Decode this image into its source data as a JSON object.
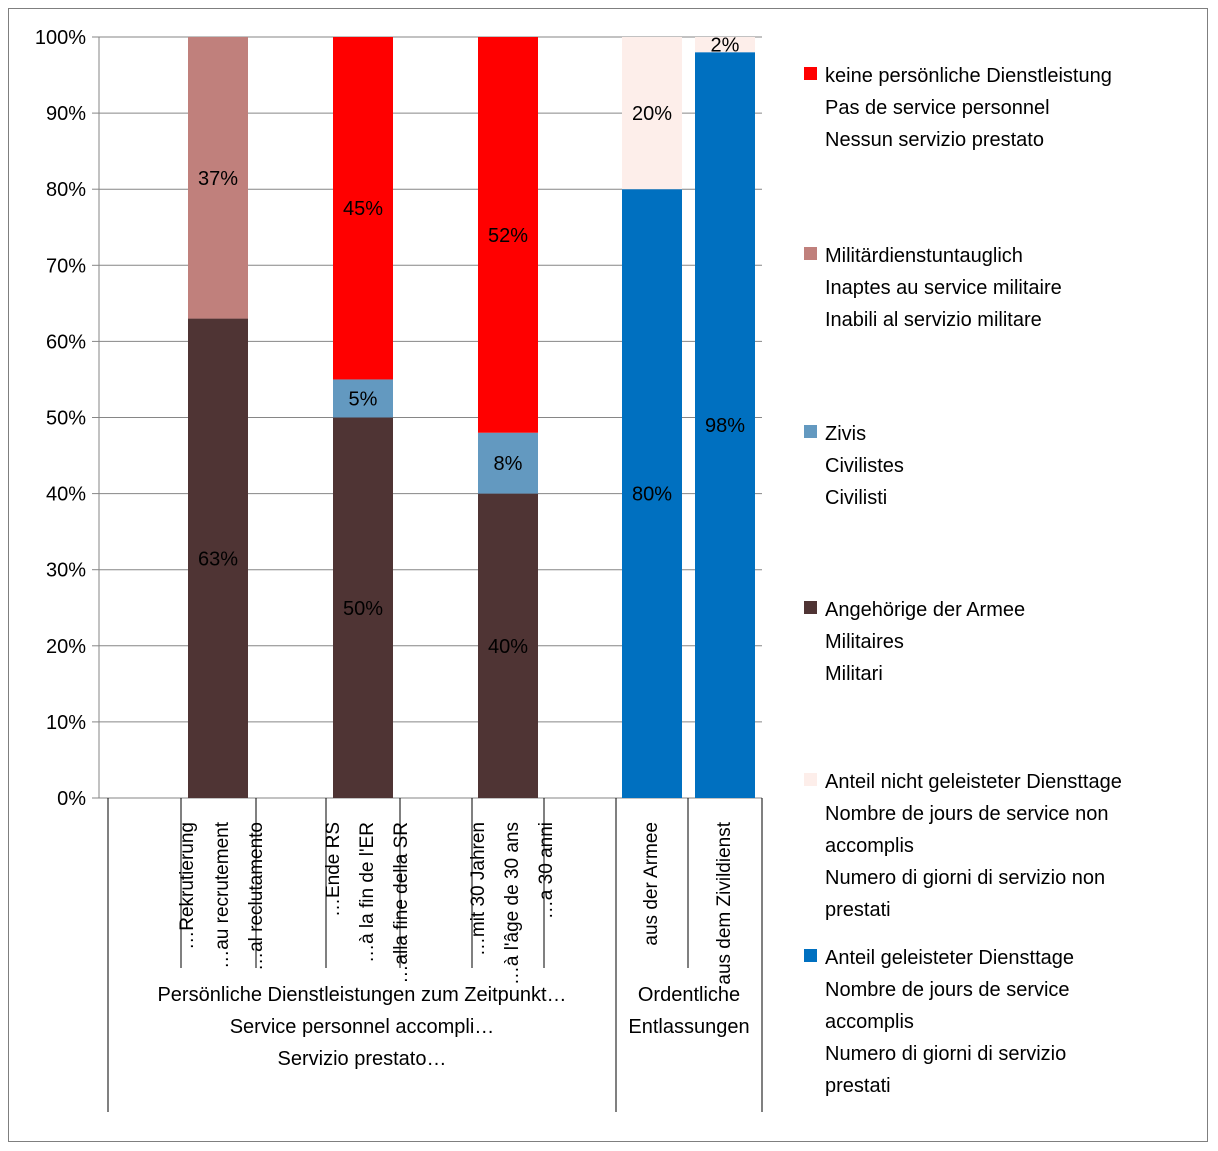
{
  "colors": {
    "keine": "#ff0000",
    "untauglich": "#c0807c",
    "zivis": "#6399c0",
    "armee": "#4f3434",
    "nicht_geleistet": "#fdeeea",
    "geleistet": "#0070c0",
    "grid": "#868686"
  },
  "chart_data": {
    "type": "bar",
    "stacked": true,
    "percent_stacked": true,
    "ylim": [
      0,
      100
    ],
    "y_ticks": [
      "0%",
      "10%",
      "20%",
      "30%",
      "40%",
      "50%",
      "60%",
      "70%",
      "80%",
      "90%",
      "100%"
    ],
    "grid": true,
    "legend_position": "right",
    "categories": [
      {
        "lines": [
          "…Rekrutierung",
          "…au recrutement",
          "…al reclutamento"
        ]
      },
      {
        "lines": [
          "…Ende RS",
          "…à la fin de l'ER",
          "…alla fine della SR"
        ]
      },
      {
        "lines": [
          "…mit 30 Jahren",
          "…à l'âge de 30 ans",
          "…a 30 anni"
        ]
      },
      {
        "lines": [
          "aus der Armee"
        ]
      },
      {
        "lines": [
          "aus dem Zivildienst"
        ]
      }
    ],
    "groups": [
      {
        "lines": [
          "Persönliche Dienstleistungen zum Zeitpunkt…",
          "Service personnel accompli…",
          "Servizio prestato…"
        ]
      },
      {
        "lines": [
          "Ordentliche",
          "Entlassungen"
        ]
      }
    ],
    "series": [
      {
        "key": "armee",
        "lines": [
          "Angehörige der Armee",
          "Militaires",
          "Militari"
        ],
        "values": [
          63,
          50,
          40,
          0,
          0
        ],
        "labels": [
          "63%",
          "50%",
          "40%",
          "",
          ""
        ]
      },
      {
        "key": "zivis",
        "lines": [
          "Zivis",
          "Civilistes",
          "Civilisti"
        ],
        "values": [
          0,
          5,
          8,
          0,
          0
        ],
        "labels": [
          "",
          "5%",
          "8%",
          "",
          ""
        ]
      },
      {
        "key": "untauglich",
        "lines": [
          "Militärdienstuntauglich",
          "Inaptes au service militaire",
          "Inabili al servizio militare"
        ],
        "values": [
          37,
          0,
          0,
          0,
          0
        ],
        "labels": [
          "37%",
          "",
          "",
          "",
          ""
        ]
      },
      {
        "key": "keine",
        "lines": [
          "keine persönliche Dienstleistung",
          "Pas de service personnel",
          "Nessun servizio prestato"
        ],
        "values": [
          0,
          45,
          52,
          0,
          0
        ],
        "labels": [
          "",
          "45%",
          "52%",
          "",
          ""
        ]
      },
      {
        "key": "geleistet",
        "lines": [
          "Anteil geleisteter Diensttage",
          "Nombre de jours de service",
          "accomplis",
          "Numero di giorni di servizio",
          "prestati"
        ],
        "values": [
          0,
          0,
          0,
          80,
          98
        ],
        "labels": [
          "",
          "",
          "",
          "80%",
          "98%"
        ]
      },
      {
        "key": "nicht_geleistet",
        "lines": [
          "Anteil nicht geleisteter Diensttage",
          "Nombre de jours de service non",
          "accomplis",
          "Numero di giorni di servizio non",
          "prestati"
        ],
        "values": [
          0,
          0,
          0,
          20,
          2
        ],
        "labels": [
          "",
          "",
          "",
          "20%",
          "2%"
        ]
      }
    ],
    "legend_order": [
      "keine",
      "untauglich",
      "zivis",
      "armee",
      "nicht_geleistet",
      "geleistet"
    ]
  }
}
